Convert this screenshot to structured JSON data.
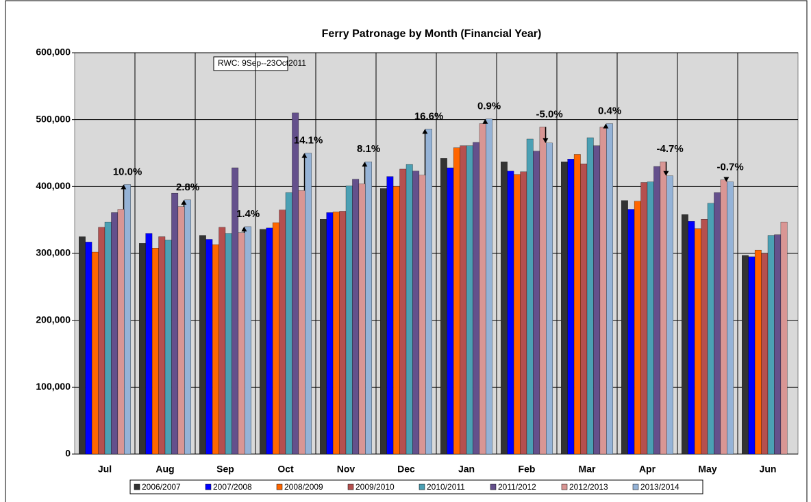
{
  "chart_data": {
    "type": "bar",
    "title": "Ferry Patronage by Month (Financial Year)",
    "note": "RWC: 9Sep--23Oct2011",
    "categories": [
      "Jul",
      "Aug",
      "Sep",
      "Oct",
      "Nov",
      "Dec",
      "Jan",
      "Feb",
      "Mar",
      "Apr",
      "May",
      "Jun"
    ],
    "series": [
      {
        "name": "2006/2007",
        "color": "#333333",
        "values": [
          325000,
          315000,
          327000,
          336000,
          351000,
          397000,
          442000,
          437000,
          437000,
          379000,
          358000,
          297000
        ]
      },
      {
        "name": "2007/2008",
        "color": "#0000ff",
        "values": [
          317000,
          330000,
          321000,
          338000,
          361000,
          415000,
          428000,
          423000,
          441000,
          366000,
          348000,
          295000
        ]
      },
      {
        "name": "2008/2009",
        "color": "#ff6600",
        "values": [
          302000,
          308000,
          313000,
          346000,
          362000,
          400000,
          458000,
          418000,
          448000,
          378000,
          337000,
          305000
        ]
      },
      {
        "name": "2009/2010",
        "color": "#b5504f",
        "values": [
          339000,
          325000,
          339000,
          365000,
          363000,
          426000,
          461000,
          422000,
          434000,
          406000,
          351000,
          300000
        ]
      },
      {
        "name": "2010/2011",
        "color": "#4ba0b4",
        "values": [
          347000,
          320000,
          330000,
          391000,
          401000,
          433000,
          461000,
          471000,
          473000,
          407000,
          375000,
          327000
        ]
      },
      {
        "name": "2011/2012",
        "color": "#64508c",
        "values": [
          361000,
          390000,
          428000,
          510000,
          411000,
          423000,
          466000,
          453000,
          461000,
          430000,
          391000,
          328000
        ]
      },
      {
        "name": "2012/2013",
        "color": "#d99694",
        "values": [
          366000,
          370000,
          331000,
          394000,
          404000,
          417000,
          494000,
          489000,
          489000,
          437000,
          410000,
          347000
        ]
      },
      {
        "name": "2013/2014",
        "color": "#95b3d7",
        "values": [
          403000,
          380000,
          340000,
          450000,
          437000,
          486000,
          501000,
          465000,
          494000,
          416000,
          407000,
          null
        ]
      }
    ],
    "annotations": [
      "10.0%",
      "2.8%",
      "1.4%",
      "14.1%",
      "8.1%",
      "16.6%",
      "0.9%",
      "-5.0%",
      "0.4%",
      "-4.7%",
      "-0.7%"
    ],
    "ylim": [
      0,
      600000
    ],
    "yticks": [
      0,
      {
        "value": 100000,
        "label": "100,000"
      },
      {
        "value": 200000,
        "label": "200,000"
      },
      {
        "value": 300000,
        "label": "300,000"
      },
      {
        "value": 400000,
        "label": "400,000"
      },
      {
        "value": 500000,
        "label": "500,000"
      },
      {
        "value": 600000,
        "label": "600,000"
      }
    ],
    "grid": true
  }
}
